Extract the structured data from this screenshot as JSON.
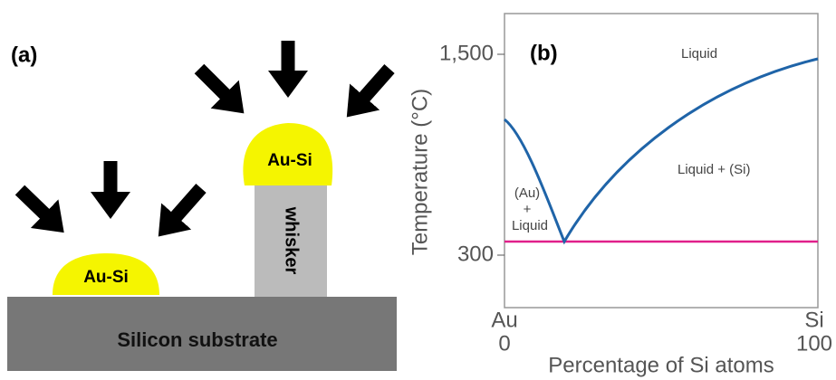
{
  "panel_a": {
    "label": "(a)",
    "droplet_small": "Au-Si",
    "droplet_top": "Au-Si",
    "whisker": "whisker",
    "substrate": "Silicon substrate"
  },
  "panel_b": {
    "label": "(b)",
    "y_axis_title": "Temperature (°C)",
    "y_tick_labels": [
      "1,500",
      "300"
    ],
    "x_axis_title": "Percentage of Si atoms",
    "x_ends": [
      {
        "element": "Au",
        "percent": "0"
      },
      {
        "element": "Si",
        "percent": "100"
      }
    ],
    "regions": {
      "liquid": "Liquid",
      "liquid_si": "Liquid + (Si)",
      "au_liquid": [
        "(Au)",
        "+",
        "Liquid"
      ]
    }
  }
}
